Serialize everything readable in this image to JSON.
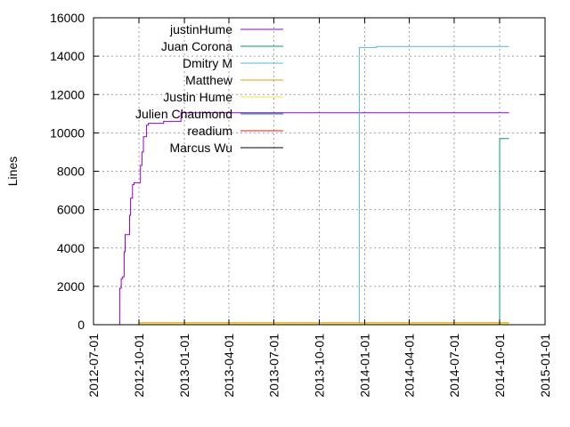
{
  "chart_data": {
    "type": "line",
    "title": "",
    "xlabel": "",
    "ylabel": "Lines",
    "x_axis_type": "date",
    "xlim": [
      "2012-07-01",
      "2015-01-01"
    ],
    "ylim": [
      0,
      16000
    ],
    "x_ticks": [
      "2012-07-01",
      "2012-10-01",
      "2013-01-01",
      "2013-04-01",
      "2013-07-01",
      "2013-10-01",
      "2014-01-01",
      "2014-04-01",
      "2014-07-01",
      "2014-10-01",
      "2015-01-01"
    ],
    "y_ticks": [
      0,
      2000,
      4000,
      6000,
      8000,
      10000,
      12000,
      14000,
      16000
    ],
    "grid": true,
    "legend_position": "top-left",
    "step_lines": true,
    "series": [
      {
        "name": "justinHume",
        "color": "#9400d3",
        "points": [
          [
            "2012-08-21",
            0
          ],
          [
            "2012-08-23",
            1900
          ],
          [
            "2012-08-26",
            2400
          ],
          [
            "2012-08-29",
            2500
          ],
          [
            "2012-09-01",
            3800
          ],
          [
            "2012-09-03",
            4700
          ],
          [
            "2012-09-09",
            4700
          ],
          [
            "2012-09-12",
            5700
          ],
          [
            "2012-09-14",
            6600
          ],
          [
            "2012-09-18",
            7300
          ],
          [
            "2012-09-21",
            7400
          ],
          [
            "2012-10-01",
            7400
          ],
          [
            "2012-10-04",
            8300
          ],
          [
            "2012-10-07",
            9000
          ],
          [
            "2012-10-10",
            9800
          ],
          [
            "2012-10-16",
            10400
          ],
          [
            "2012-10-20",
            10500
          ],
          [
            "2012-11-20",
            10600
          ],
          [
            "2012-12-25",
            11050
          ],
          [
            "2014-10-20",
            11050
          ]
        ]
      },
      {
        "name": "Juan Corona",
        "color": "#009e73",
        "points": [
          [
            "2013-09-15",
            0
          ],
          [
            "2014-09-30",
            0
          ],
          [
            "2014-10-01",
            9700
          ],
          [
            "2014-10-20",
            9700
          ]
        ]
      },
      {
        "name": "Dmitry M",
        "color": "#56b4e9",
        "points": [
          [
            "2013-09-15",
            0
          ],
          [
            "2013-12-20",
            0
          ],
          [
            "2013-12-21",
            14450
          ],
          [
            "2014-01-25",
            14500
          ],
          [
            "2014-10-20",
            14500
          ]
        ]
      },
      {
        "name": "Matthew",
        "color": "#e69f00",
        "points": [
          [
            "2012-10-01",
            100
          ],
          [
            "2014-10-20",
            100
          ]
        ]
      },
      {
        "name": "Justin Hume",
        "color": "#f0e442",
        "points": [
          [
            "2012-10-01",
            50
          ],
          [
            "2014-10-20",
            50
          ]
        ]
      },
      {
        "name": "Julien Chaumond",
        "color": "#0072b2",
        "points": [
          [
            "2013-09-01",
            0
          ],
          [
            "2014-10-20",
            0
          ]
        ]
      },
      {
        "name": "readium",
        "color": "#e51e10",
        "points": []
      },
      {
        "name": "Marcus Wu",
        "color": "#000000",
        "points": []
      }
    ]
  }
}
